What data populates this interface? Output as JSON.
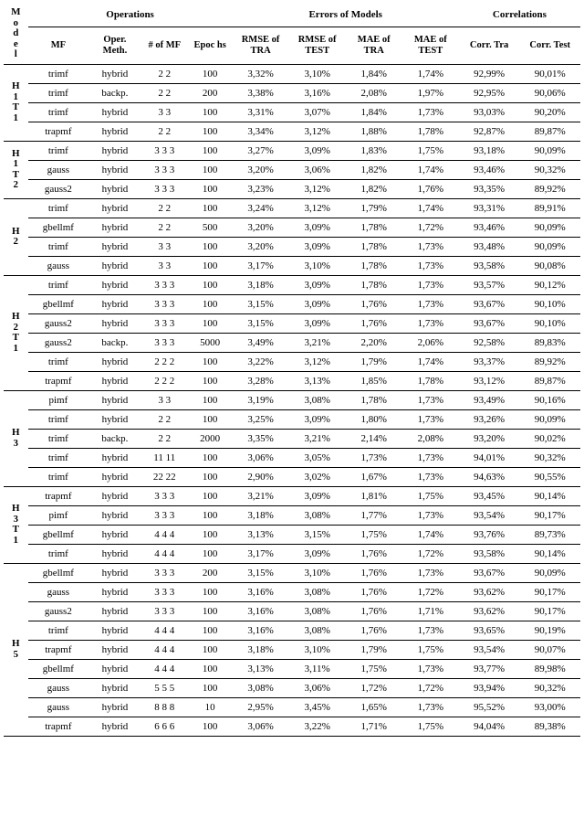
{
  "headers": {
    "model": "M\no\nd\ne\nl",
    "operations": "Operations",
    "errors": "Errors of Models",
    "correlations": "Correlations",
    "mf": "MF",
    "meth": "Oper. Meth.",
    "nmf": "# of MF",
    "epochs": "Epoc hs",
    "rmse_tra": "RMSE of TRA",
    "rmse_test": "RMSE of TEST",
    "mae_tra": "MAE of TRA",
    "mae_test": "MAE of TEST",
    "corr_tra": "Corr. Tra",
    "corr_test": "Corr. Test"
  },
  "groups": [
    {
      "label": "H\n1\nT\n1",
      "rows": [
        [
          "trimf",
          "hybrid",
          "2 2",
          "100",
          "3,32%",
          "3,10%",
          "1,84%",
          "1,74%",
          "92,99%",
          "90,01%"
        ],
        [
          "trimf",
          "backp.",
          "2 2",
          "200",
          "3,38%",
          "3,16%",
          "2,08%",
          "1,97%",
          "92,95%",
          "90,06%"
        ],
        [
          "trimf",
          "hybrid",
          "3 3",
          "100",
          "3,31%",
          "3,07%",
          "1,84%",
          "1,73%",
          "93,03%",
          "90,20%"
        ],
        [
          "trapmf",
          "hybrid",
          "2 2",
          "100",
          "3,34%",
          "3,12%",
          "1,88%",
          "1,78%",
          "92,87%",
          "89,87%"
        ]
      ]
    },
    {
      "label": "H\n1\nT\n2",
      "rows": [
        [
          "trimf",
          "hybrid",
          "3 3 3",
          "100",
          "3,27%",
          "3,09%",
          "1,83%",
          "1,75%",
          "93,18%",
          "90,09%"
        ],
        [
          "gauss",
          "hybrid",
          "3 3 3",
          "100",
          "3,20%",
          "3,06%",
          "1,82%",
          "1,74%",
          "93,46%",
          "90,32%"
        ],
        [
          "gauss2",
          "hybrid",
          "3 3 3",
          "100",
          "3,23%",
          "3,12%",
          "1,82%",
          "1,76%",
          "93,35%",
          "89,92%"
        ]
      ]
    },
    {
      "label": "H\n2",
      "rows": [
        [
          "trimf",
          "hybrid",
          "2 2",
          "100",
          "3,24%",
          "3,12%",
          "1,79%",
          "1,74%",
          "93,31%",
          "89,91%"
        ],
        [
          "gbellmf",
          "hybrid",
          "2 2",
          "500",
          "3,20%",
          "3,09%",
          "1,78%",
          "1,72%",
          "93,46%",
          "90,09%"
        ],
        [
          "trimf",
          "hybrid",
          "3 3",
          "100",
          "3,20%",
          "3,09%",
          "1,78%",
          "1,73%",
          "93,48%",
          "90,09%"
        ],
        [
          "gauss",
          "hybrid",
          "3 3",
          "100",
          "3,17%",
          "3,10%",
          "1,78%",
          "1,73%",
          "93,58%",
          "90,08%"
        ]
      ]
    },
    {
      "label": "H\n2\nT\n1",
      "rows": [
        [
          "trimf",
          "hybrid",
          "3 3 3",
          "100",
          "3,18%",
          "3,09%",
          "1,78%",
          "1,73%",
          "93,57%",
          "90,12%"
        ],
        [
          "gbellmf",
          "hybrid",
          "3 3 3",
          "100",
          "3,15%",
          "3,09%",
          "1,76%",
          "1,73%",
          "93,67%",
          "90,10%"
        ],
        [
          "gauss2",
          "hybrid",
          "3 3 3",
          "100",
          "3,15%",
          "3,09%",
          "1,76%",
          "1,73%",
          "93,67%",
          "90,10%"
        ],
        [
          "gauss2",
          "backp.",
          "3 3 3",
          "5000",
          "3,49%",
          "3,21%",
          "2,20%",
          "2,06%",
          "92,58%",
          "89,83%"
        ],
        [
          "trimf",
          "hybrid",
          "2 2 2",
          "100",
          "3,22%",
          "3,12%",
          "1,79%",
          "1,74%",
          "93,37%",
          "89,92%"
        ],
        [
          "trapmf",
          "hybrid",
          "2 2 2",
          "100",
          "3,28%",
          "3,13%",
          "1,85%",
          "1,78%",
          "93,12%",
          "89,87%"
        ]
      ]
    },
    {
      "label": "H\n3",
      "rows": [
        [
          "pimf",
          "hybrid",
          "3 3",
          "100",
          "3,19%",
          "3,08%",
          "1,78%",
          "1,73%",
          "93,49%",
          "90,16%"
        ],
        [
          "trimf",
          "hybrid",
          "2 2",
          "100",
          "3,25%",
          "3,09%",
          "1,80%",
          "1,73%",
          "93,26%",
          "90,09%"
        ],
        [
          "trimf",
          "backp.",
          "2 2",
          "2000",
          "3,35%",
          "3,21%",
          "2,14%",
          "2,08%",
          "93,20%",
          "90,02%"
        ],
        [
          "trimf",
          "hybrid",
          "11 11",
          "100",
          "3,06%",
          "3,05%",
          "1,73%",
          "1,73%",
          "94,01%",
          "90,32%"
        ],
        [
          "trimf",
          "hybrid",
          "22 22",
          "100",
          "2,90%",
          "3,02%",
          "1,67%",
          "1,73%",
          "94,63%",
          "90,55%"
        ]
      ]
    },
    {
      "label": "H\n3\nT\n1",
      "rows": [
        [
          "trapmf",
          "hybrid",
          "3 3 3",
          "100",
          "3,21%",
          "3,09%",
          "1,81%",
          "1,75%",
          "93,45%",
          "90,14%"
        ],
        [
          "pimf",
          "hybrid",
          "3 3 3",
          "100",
          "3,18%",
          "3,08%",
          "1,77%",
          "1,73%",
          "93,54%",
          "90,17%"
        ],
        [
          "gbellmf",
          "hybrid",
          "4 4 4",
          "100",
          "3,13%",
          "3,15%",
          "1,75%",
          "1,74%",
          "93,76%",
          "89,73%"
        ],
        [
          "trimf",
          "hybrid",
          "4 4 4",
          "100",
          "3,17%",
          "3,09%",
          "1,76%",
          "1,72%",
          "93,58%",
          "90,14%"
        ]
      ]
    },
    {
      "label": "H\n5",
      "rows": [
        [
          "gbellmf",
          "hybrid",
          "3 3 3",
          "200",
          "3,15%",
          "3,10%",
          "1,76%",
          "1,73%",
          "93,67%",
          "90,09%"
        ],
        [
          "gauss",
          "hybrid",
          "3 3 3",
          "100",
          "3,16%",
          "3,08%",
          "1,76%",
          "1,72%",
          "93,62%",
          "90,17%"
        ],
        [
          "gauss2",
          "hybrid",
          "3 3 3",
          "100",
          "3,16%",
          "3,08%",
          "1,76%",
          "1,71%",
          "93,62%",
          "90,17%"
        ],
        [
          "trimf",
          "hybrid",
          "4 4 4",
          "100",
          "3,16%",
          "3,08%",
          "1,76%",
          "1,73%",
          "93,65%",
          "90,19%"
        ],
        [
          "trapmf",
          "hybrid",
          "4 4 4",
          "100",
          "3,18%",
          "3,10%",
          "1,79%",
          "1,75%",
          "93,54%",
          "90,07%"
        ],
        [
          "gbellmf",
          "hybrid",
          "4 4 4",
          "100",
          "3,13%",
          "3,11%",
          "1,75%",
          "1,73%",
          "93,77%",
          "89,98%"
        ],
        [
          "gauss",
          "hybrid",
          "5 5 5",
          "100",
          "3,08%",
          "3,06%",
          "1,72%",
          "1,72%",
          "93,94%",
          "90,32%"
        ],
        [
          "gauss",
          "hybrid",
          "8 8 8",
          "10",
          "2,95%",
          "3,45%",
          "1,65%",
          "1,73%",
          "95,52%",
          "93,00%"
        ],
        [
          "trapmf",
          "hybrid",
          "6 6 6",
          "100",
          "3,06%",
          "3,22%",
          "1,71%",
          "1,75%",
          "94,04%",
          "89,38%"
        ]
      ]
    }
  ]
}
